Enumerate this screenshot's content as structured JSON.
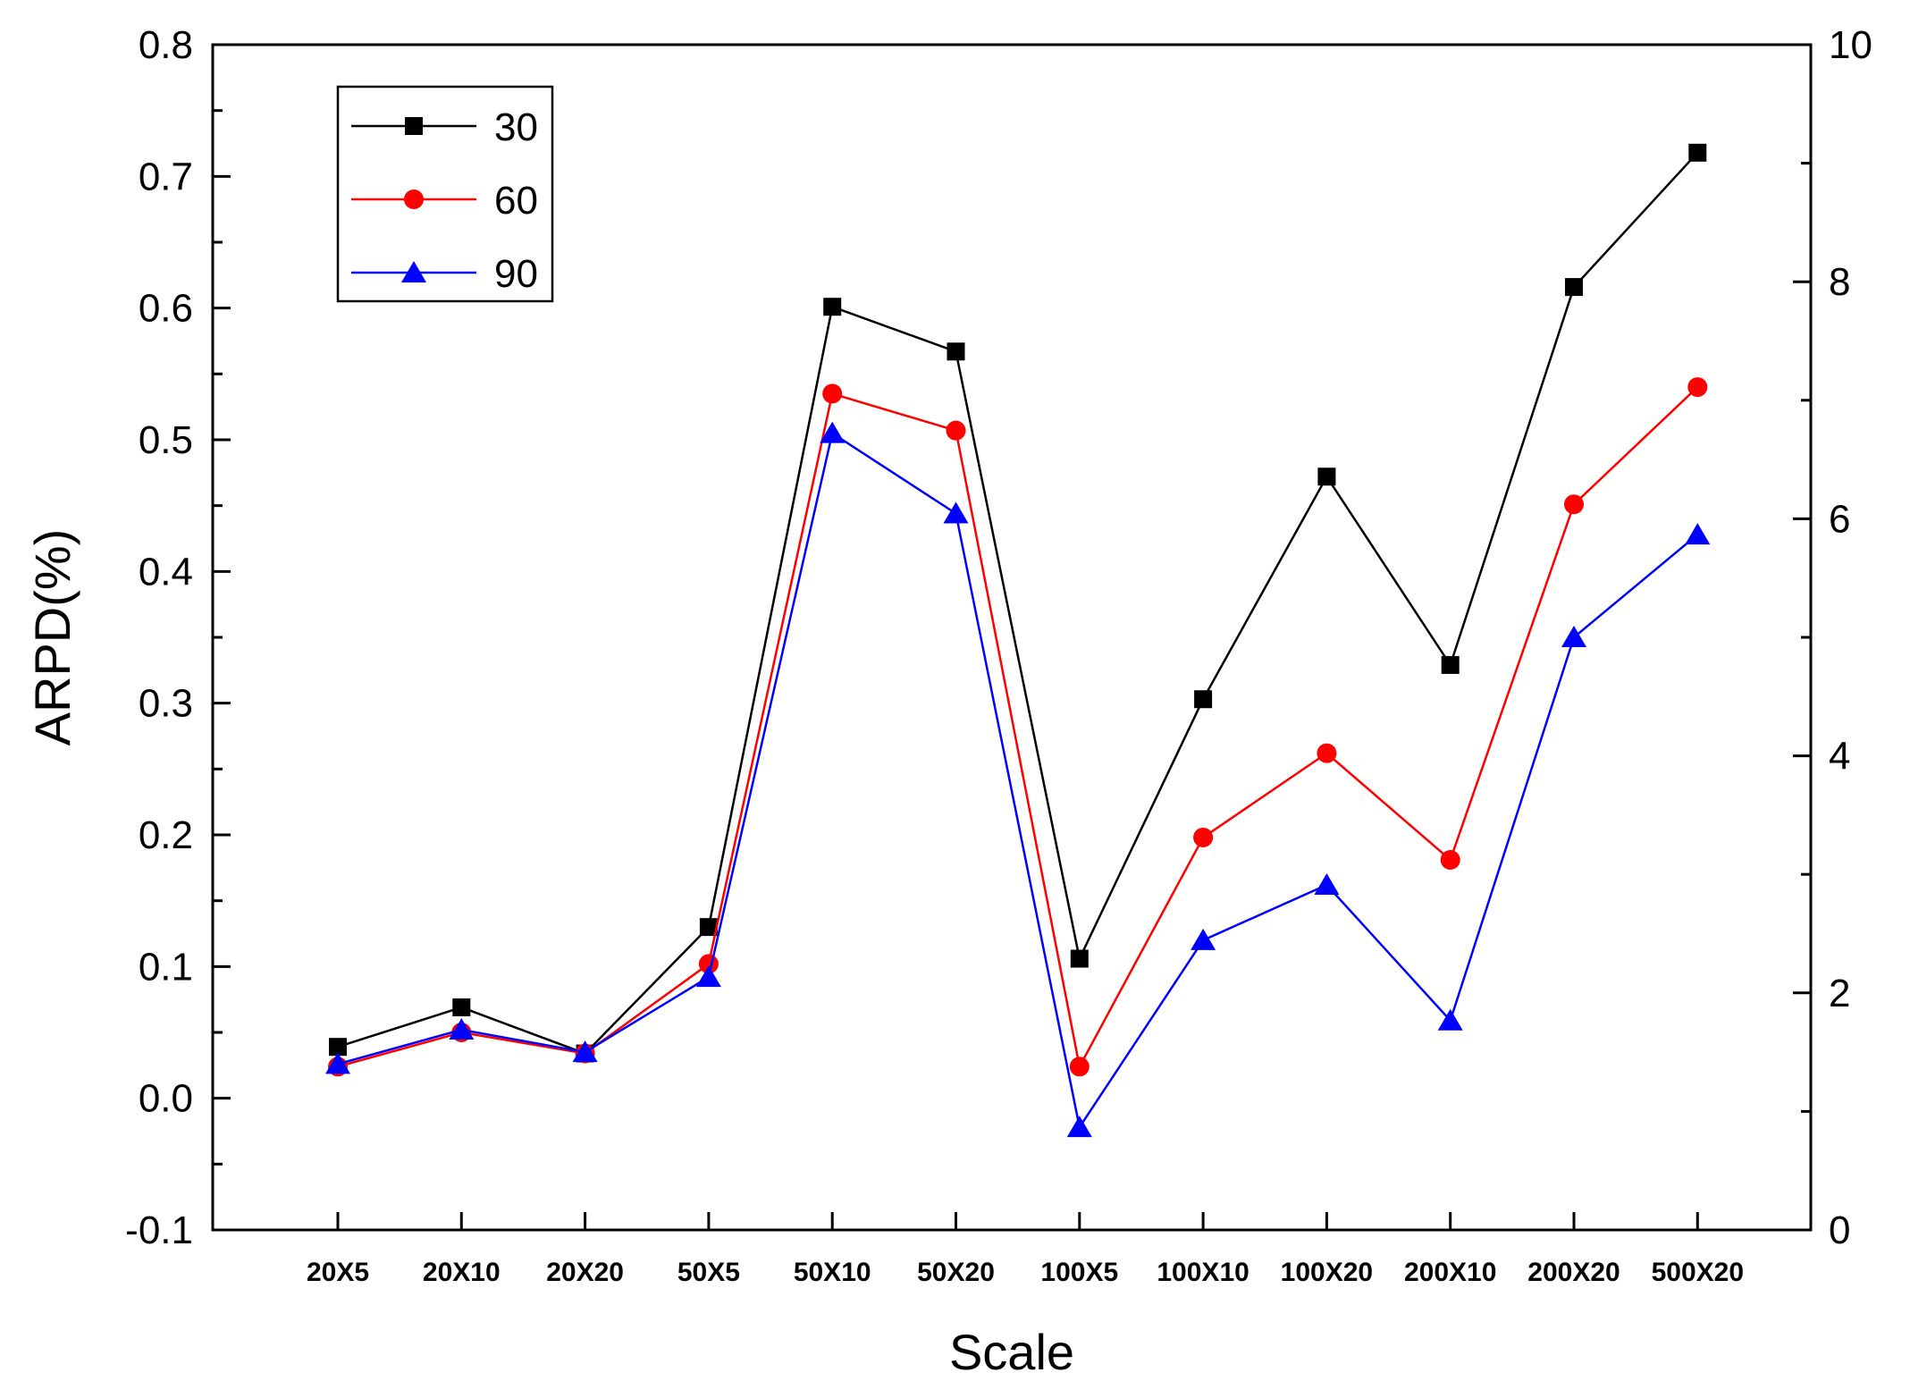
{
  "chart_data": {
    "type": "line",
    "title": "",
    "xlabel": "Scale",
    "ylabel": "ARPD(%)",
    "categories": [
      "20X5",
      "20X10",
      "20X20",
      "50X5",
      "50X10",
      "50X20",
      "100X5",
      "100X10",
      "100X20",
      "200X10",
      "200X20",
      "500X20"
    ],
    "ylim": [
      -0.1,
      0.8
    ],
    "yticks": [
      "-0.1",
      "0.0",
      "0.1",
      "0.2",
      "0.3",
      "0.4",
      "0.5",
      "0.6",
      "0.7",
      "0.8"
    ],
    "y2lim": [
      0,
      10
    ],
    "y2ticks": [
      "0",
      "2",
      "4",
      "6",
      "8",
      "10"
    ],
    "legend_position": "top-left",
    "grid": false,
    "series": [
      {
        "name": "30",
        "color": "#000000",
        "marker": "square",
        "values": [
          0.039,
          0.069,
          0.034,
          0.13,
          0.601,
          0.567,
          0.106,
          0.303,
          0.472,
          0.329,
          0.616,
          0.718
        ]
      },
      {
        "name": "60",
        "color": "#ff0000",
        "marker": "circle",
        "values": [
          0.024,
          0.05,
          0.034,
          0.102,
          0.535,
          0.507,
          0.024,
          0.198,
          0.262,
          0.181,
          0.451,
          0.54
        ]
      },
      {
        "name": "90",
        "color": "#0000ff",
        "marker": "triangle",
        "values": [
          0.026,
          0.052,
          0.035,
          0.092,
          0.505,
          0.444,
          -0.022,
          0.12,
          0.162,
          0.059,
          0.35,
          0.428
        ]
      }
    ]
  }
}
